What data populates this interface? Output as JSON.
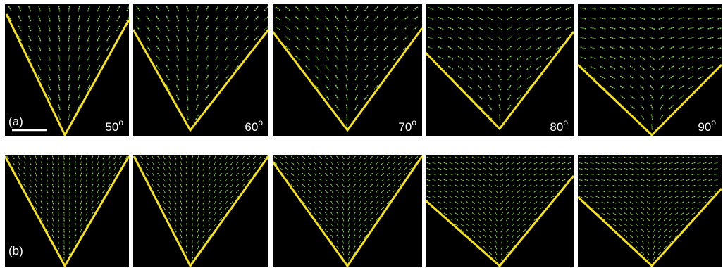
{
  "row_a": {
    "label": "(a)",
    "angles": [
      {
        "value": "50",
        "mark": "o"
      },
      {
        "value": "60",
        "mark": "o"
      },
      {
        "value": "70",
        "mark": "o"
      },
      {
        "value": "80",
        "mark": "o"
      },
      {
        "value": "90",
        "mark": "o"
      }
    ]
  },
  "row_b": {
    "label": "(b)"
  }
}
